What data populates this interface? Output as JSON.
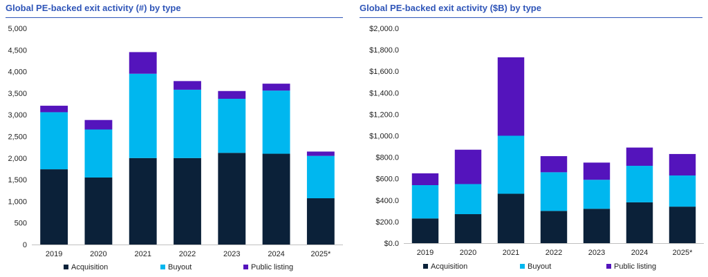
{
  "colors": {
    "acquisition": "#0b2139",
    "buyout": "#00b7ef",
    "public_listing": "#5414bc",
    "title": "#2f55b8"
  },
  "chart_data": [
    {
      "type": "bar",
      "stacked": true,
      "title": "Global PE-backed exit activity (#) by type",
      "categories": [
        "2019",
        "2020",
        "2021",
        "2022",
        "2023",
        "2024",
        "2025*"
      ],
      "ylim": [
        0,
        5000
      ],
      "yticks": [
        "0",
        "500",
        "1,000",
        "1,500",
        "2,000",
        "2,500",
        "3,000",
        "3,500",
        "4,000",
        "4,500",
        "5,000"
      ],
      "legend_position": "bottom",
      "series": [
        {
          "name": "Acquisition",
          "values": [
            1740,
            1550,
            2000,
            2000,
            2120,
            2100,
            1070
          ]
        },
        {
          "name": "Buyout",
          "values": [
            1320,
            1110,
            1950,
            1580,
            1250,
            1460,
            980
          ]
        },
        {
          "name": "Public listing",
          "values": [
            150,
            220,
            500,
            200,
            180,
            160,
            100
          ]
        }
      ]
    },
    {
      "type": "bar",
      "stacked": true,
      "title": "Global PE-backed exit activity ($B) by type",
      "categories": [
        "2019",
        "2020",
        "2021",
        "2022",
        "2023",
        "2024",
        "2025*"
      ],
      "ylim": [
        0,
        2000
      ],
      "yticks": [
        "$0.0",
        "$200.0",
        "$400.0",
        "$600.0",
        "$800.0",
        "$1,000.0",
        "$1,200.0",
        "$1,400.0",
        "$1,600.0",
        "$1,800.0",
        "$2,000.0"
      ],
      "legend_position": "bottom",
      "series": [
        {
          "name": "Acquisition",
          "values": [
            230,
            270,
            460,
            300,
            320,
            380,
            340
          ]
        },
        {
          "name": "Buyout",
          "values": [
            310,
            280,
            540,
            360,
            270,
            340,
            290
          ]
        },
        {
          "name": "Public listing",
          "values": [
            110,
            320,
            730,
            150,
            160,
            170,
            200
          ]
        }
      ]
    }
  ]
}
